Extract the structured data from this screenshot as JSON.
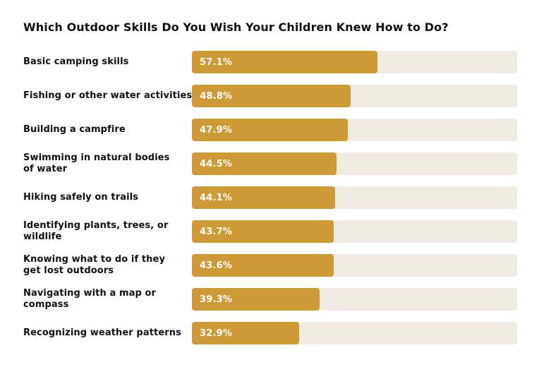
{
  "chart_data": {
    "type": "bar",
    "orientation": "horizontal",
    "title": "Which Outdoor Skills Do You Wish Your Children Knew How to Do?",
    "categories": [
      "Basic camping skills",
      "Fishing or other water activities",
      "Building a campfire",
      "Swimming in natural bodies\nof water",
      "Hiking safely on trails",
      "Identifying plants, trees, or\nwildlife",
      "Knowing what to do if they\nget lost outdoors",
      "Navigating with a map or\ncompass",
      "Recognizing weather patterns"
    ],
    "values": [
      57.1,
      48.8,
      47.9,
      44.5,
      44.1,
      43.7,
      43.6,
      39.3,
      32.9
    ],
    "value_labels": [
      "57.1%",
      "48.8%",
      "47.9%",
      "44.5%",
      "44.1%",
      "43.7%",
      "43.6%",
      "39.3%",
      "32.9%"
    ],
    "xlim": [
      0,
      100
    ],
    "grid": false,
    "legend": false,
    "colors": {
      "bar_fill": "#CE9937",
      "bar_track": "#EFEBE0",
      "title_text": "#111111",
      "label_text": "#111111",
      "value_text": "#FFFFFF",
      "background": "#FFFFFF"
    }
  }
}
